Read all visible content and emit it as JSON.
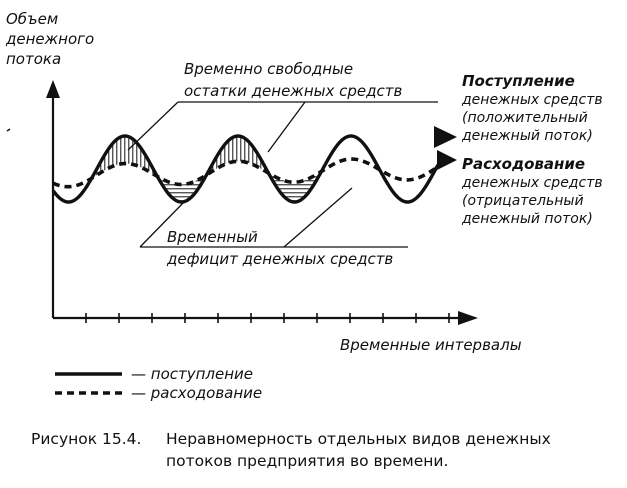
{
  "y_axis_label": [
    "Объем",
    "денежного",
    "потока"
  ],
  "x_axis_label": "Временные интервалы",
  "annotations": {
    "surplus": [
      "Временно свободные",
      "остатки денежных средств"
    ],
    "deficit": [
      "Временный",
      "дефицит денежных средств"
    ]
  },
  "series_labels": {
    "inflow": {
      "title": "Поступление",
      "lines": [
        "денежных средств",
        "(положительный",
        "денежный поток)"
      ]
    },
    "outflow": {
      "title": "Расходование",
      "lines": [
        "денежных средств",
        "(отрицательный",
        "денежный поток)"
      ]
    }
  },
  "legend": {
    "inflow": "— поступление",
    "outflow": "— расходование"
  },
  "caption": {
    "number": "Рисунок 15.4.",
    "text_lines": [
      "Неравномерность отдельных видов денежных",
      "потоков предприятия во времени."
    ]
  }
}
